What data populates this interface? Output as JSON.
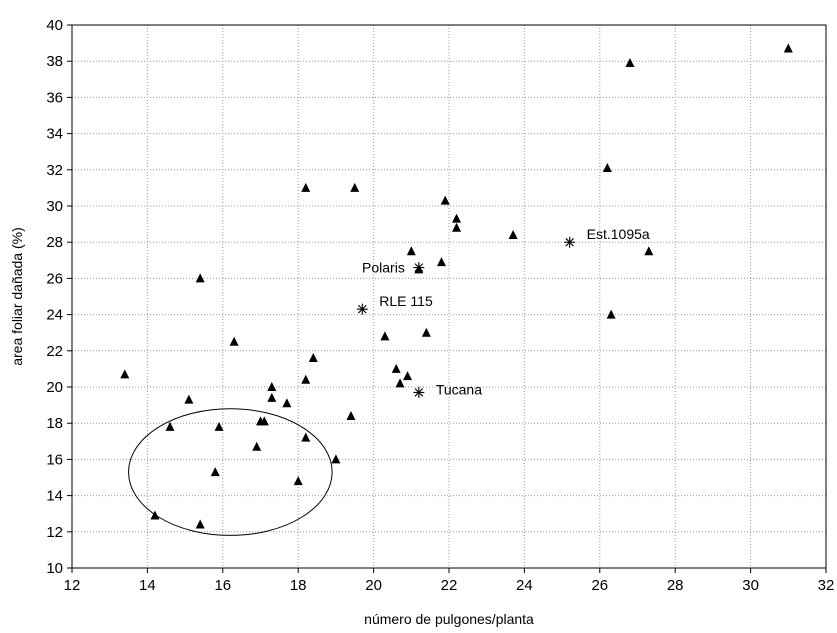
{
  "chart_data": {
    "type": "scatter",
    "title": "",
    "xlabel": "número de pulgones/planta",
    "ylabel": "area foliar dañada (%)",
    "xlim": [
      12,
      32
    ],
    "ylim": [
      10,
      40
    ],
    "xticks": [
      12,
      14,
      16,
      18,
      20,
      22,
      24,
      26,
      28,
      30,
      32
    ],
    "yticks": [
      10,
      12,
      14,
      16,
      18,
      20,
      22,
      24,
      26,
      28,
      30,
      32,
      34,
      36,
      38,
      40
    ],
    "grid": true,
    "series": [
      {
        "marker": "triangle",
        "points": [
          [
            13.4,
            20.7
          ],
          [
            14.2,
            12.9
          ],
          [
            14.6,
            17.8
          ],
          [
            15.1,
            19.3
          ],
          [
            15.4,
            12.4
          ],
          [
            15.4,
            26.0
          ],
          [
            15.8,
            15.3
          ],
          [
            15.9,
            17.8
          ],
          [
            16.3,
            22.5
          ],
          [
            16.9,
            16.7
          ],
          [
            17.0,
            18.1
          ],
          [
            17.1,
            18.1
          ],
          [
            17.3,
            19.4
          ],
          [
            17.3,
            20.0
          ],
          [
            17.7,
            19.1
          ],
          [
            18.0,
            14.8
          ],
          [
            18.2,
            31.0
          ],
          [
            18.2,
            17.2
          ],
          [
            18.2,
            20.4
          ],
          [
            18.4,
            21.6
          ],
          [
            19.0,
            16.0
          ],
          [
            19.4,
            18.4
          ],
          [
            19.5,
            31.0
          ],
          [
            20.3,
            22.8
          ],
          [
            20.6,
            21.0
          ],
          [
            20.7,
            20.2
          ],
          [
            20.9,
            20.6
          ],
          [
            21.0,
            27.5
          ],
          [
            21.2,
            26.5
          ],
          [
            21.4,
            23.0
          ],
          [
            21.8,
            26.9
          ],
          [
            21.9,
            30.3
          ],
          [
            22.2,
            29.3
          ],
          [
            22.2,
            28.8
          ],
          [
            23.7,
            28.4
          ],
          [
            26.2,
            32.1
          ],
          [
            26.3,
            24.0
          ],
          [
            26.8,
            37.9
          ],
          [
            27.3,
            27.5
          ],
          [
            31.0,
            38.7
          ]
        ]
      },
      {
        "marker": "asterisk",
        "points": [
          {
            "x": 21.2,
            "y": 26.6,
            "label": "Polaris"
          },
          {
            "x": 19.7,
            "y": 24.3,
            "label": "RLE 115"
          },
          {
            "x": 21.2,
            "y": 19.7,
            "label": "Tucana"
          },
          {
            "x": 25.2,
            "y": 28.0,
            "label": "Est.1095a"
          }
        ]
      }
    ],
    "annotations": [
      {
        "type": "ellipse",
        "cx": 16.2,
        "cy": 15.3,
        "rx": 2.7,
        "ry": 3.5
      }
    ]
  }
}
